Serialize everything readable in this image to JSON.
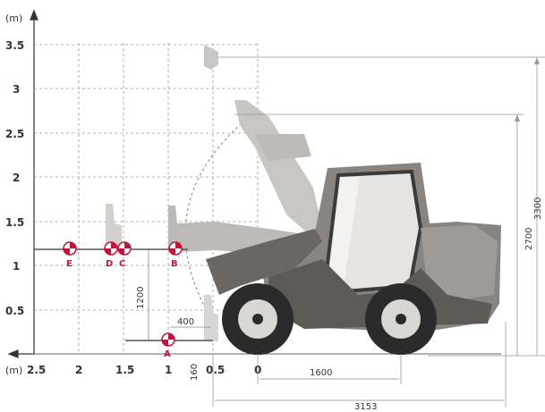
{
  "axes": {
    "y_unit": "(m)",
    "x_unit": "(m)",
    "y_ticks": [
      "3.5",
      "3",
      "2.5",
      "2",
      "1.5",
      "1",
      "0.5"
    ],
    "x_ticks": [
      "2.5",
      "2",
      "1.5",
      "1",
      "0.5",
      "0"
    ]
  },
  "points": [
    {
      "label": "A"
    },
    {
      "label": "B"
    },
    {
      "label": "C"
    },
    {
      "label": "D"
    },
    {
      "label": "E"
    }
  ],
  "dimensions": {
    "d1200": "1200",
    "d400": "400",
    "d160": "160",
    "d1600": "1600",
    "d3153": "3153",
    "d2700": "2700",
    "d3300": "3300"
  },
  "colors": {
    "marker": "#c0143c",
    "body": "#8a8480",
    "arm": "#b3b0ac",
    "tyre": "#2b2b2b",
    "grid": "#9a9a9a"
  }
}
